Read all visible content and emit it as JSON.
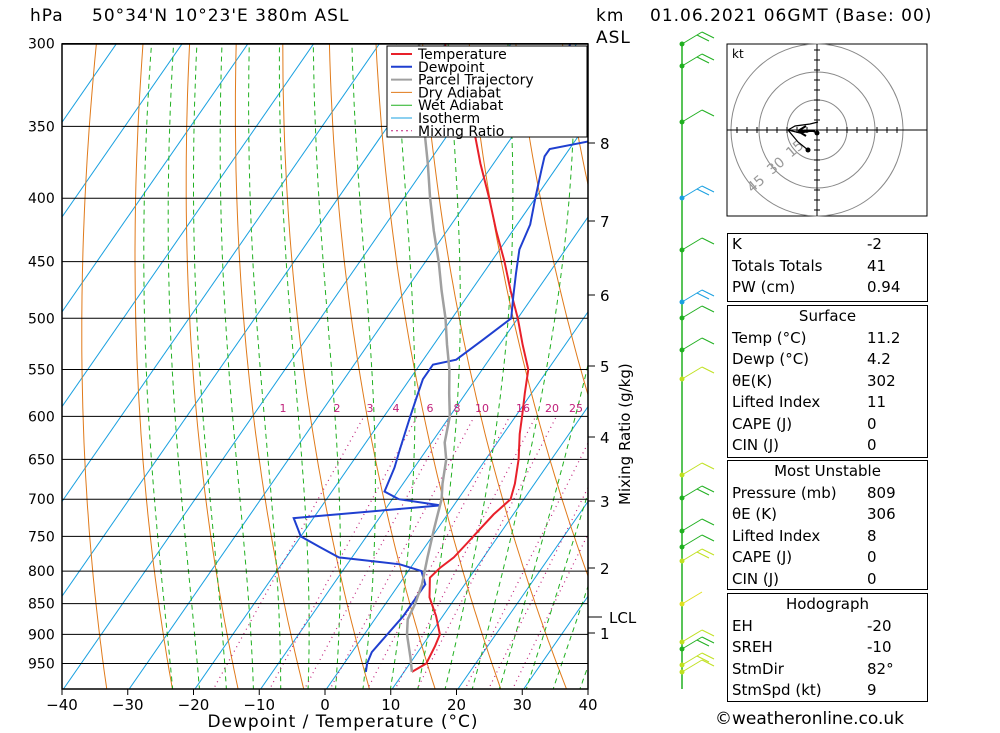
{
  "header": {
    "hpa_label": "hPa",
    "location": "50°34'N  10°23'E  380m  ASL",
    "km_label": "km",
    "asl_label": "ASL",
    "datetime": "01.06.2021  06GMT  (Base: 00)"
  },
  "credit": "©weatheronline.co.uk",
  "chart_data": {
    "type": "line",
    "xlabel": "Dewpoint / Temperature (°C)",
    "ylabel_right": "Mixing Ratio (g/kg)",
    "x_ticks": [
      "−40",
      "−30",
      "−20",
      "−10",
      "0",
      "10",
      "20",
      "30",
      "40"
    ],
    "pressure_ticks": [
      "300",
      "350",
      "400",
      "450",
      "500",
      "550",
      "600",
      "650",
      "700",
      "750",
      "800",
      "850",
      "900",
      "950"
    ],
    "km_ticks": [
      "8",
      "7",
      "6",
      "5",
      "4",
      "3",
      "2",
      "1"
    ],
    "lcl_label": "LCL",
    "mixing_ratio_labels": [
      "1",
      "2",
      "3",
      "4",
      "6",
      "8",
      "10",
      "16",
      "20",
      "25"
    ],
    "legend": [
      "Temperature",
      "Dewpoint",
      "Parcel Trajectory",
      "Dry Adiabat",
      "Wet Adiabat",
      "Isotherm",
      "Mixing Ratio"
    ],
    "colors": {
      "temperature": "#e8202a",
      "dewpoint": "#1f3fd0",
      "parcel": "#a0a0a0",
      "dry_adiabat": "#e07a1a",
      "wet_adiabat": "#20b020",
      "isotherm": "#19a0e0",
      "mixing_ratio": "#c0207a"
    },
    "series": [
      {
        "name": "Temperature",
        "points": [
          [
            11.2,
            965
          ],
          [
            12.5,
            950
          ],
          [
            12,
            920
          ],
          [
            11.5,
            900
          ],
          [
            9,
            870
          ],
          [
            6,
            840
          ],
          [
            4,
            810
          ],
          [
            4.5,
            795
          ],
          [
            5.5,
            780
          ],
          [
            6,
            760
          ],
          [
            6.5,
            740
          ],
          [
            7,
            720
          ],
          [
            8,
            700
          ],
          [
            7,
            680
          ],
          [
            5,
            650
          ],
          [
            2.5,
            620
          ],
          [
            1,
            600
          ],
          [
            -1,
            575
          ],
          [
            -3,
            550
          ],
          [
            -6.5,
            525
          ],
          [
            -10,
            500
          ],
          [
            -14,
            475
          ],
          [
            -18,
            450
          ],
          [
            -22.5,
            425
          ],
          [
            -27,
            400
          ],
          [
            -32,
            375
          ],
          [
            -37,
            350
          ],
          [
            -41,
            335
          ],
          [
            -45,
            320
          ],
          [
            -49,
            305
          ],
          [
            -50,
            300
          ]
        ]
      },
      {
        "name": "Dewpoint",
        "points": [
          [
            4.2,
            965
          ],
          [
            3.5,
            950
          ],
          [
            3,
            930
          ],
          [
            3.5,
            900
          ],
          [
            4,
            870
          ],
          [
            4,
            850
          ],
          [
            4,
            820
          ],
          [
            2,
            800
          ],
          [
            -2,
            790
          ],
          [
            -12,
            780
          ],
          [
            -16,
            765
          ],
          [
            -20,
            750
          ],
          [
            -23,
            725
          ],
          [
            -2,
            708
          ],
          [
            -9,
            700
          ],
          [
            -12,
            690
          ],
          [
            -13,
            660
          ],
          [
            -14,
            640
          ],
          [
            -15,
            620
          ],
          [
            -16,
            600
          ],
          [
            -17,
            580
          ],
          [
            -18,
            560
          ],
          [
            -18,
            545
          ],
          [
            -15,
            540
          ],
          [
            -13,
            520
          ],
          [
            -11,
            500
          ],
          [
            -13,
            480
          ],
          [
            -15,
            460
          ],
          [
            -17,
            440
          ],
          [
            -18,
            420
          ],
          [
            -20,
            400
          ],
          [
            -22,
            380
          ],
          [
            -23,
            370
          ],
          [
            -23,
            365
          ],
          [
            -15,
            357
          ],
          [
            -10,
            350
          ],
          [
            -14,
            345
          ],
          [
            -22,
            340
          ],
          [
            -28,
            330
          ],
          [
            -28,
            320
          ],
          [
            -30,
            310
          ],
          [
            -31,
            300
          ]
        ]
      },
      {
        "name": "Parcel Trajectory",
        "points": [
          [
            11.2,
            965
          ],
          [
            9.5,
            940
          ],
          [
            6.5,
            900
          ],
          [
            5,
            875
          ],
          [
            4.5,
            850
          ],
          [
            3.5,
            820
          ],
          [
            2.5,
            800
          ],
          [
            1.5,
            780
          ],
          [
            0.5,
            760
          ],
          [
            -0.5,
            740
          ],
          [
            -1.5,
            720
          ],
          [
            -2.5,
            700
          ],
          [
            -4,
            680
          ],
          [
            -6,
            650
          ],
          [
            -8,
            630
          ],
          [
            -10,
            600
          ],
          [
            -12.5,
            575
          ],
          [
            -15,
            550
          ],
          [
            -18,
            525
          ],
          [
            -21,
            500
          ],
          [
            -24.5,
            475
          ],
          [
            -28,
            450
          ],
          [
            -32,
            425
          ],
          [
            -36,
            400
          ],
          [
            -40,
            375
          ],
          [
            -44.5,
            350
          ],
          [
            -49,
            325
          ],
          [
            -54,
            300
          ]
        ]
      }
    ],
    "xlim": [
      -40,
      40
    ],
    "ylim_hpa": [
      985,
      300
    ],
    "scale": "log-pressure, skewed isotherms"
  },
  "hodograph": {
    "unit": "kt",
    "ring_labels": [
      "15",
      "30",
      "45"
    ]
  },
  "indices_top": [
    {
      "label": "K",
      "value": "-2"
    },
    {
      "label": "Totals Totals",
      "value": "41"
    },
    {
      "label": "PW (cm)",
      "value": "0.94"
    }
  ],
  "surface": {
    "title": "Surface",
    "rows": [
      {
        "label": "Temp (°C)",
        "value": "11.2"
      },
      {
        "label": "Dewp (°C)",
        "value": "4.2"
      },
      {
        "label": "θE(K)",
        "value": "302"
      },
      {
        "label": "Lifted Index",
        "value": "11"
      },
      {
        "label": "CAPE (J)",
        "value": "0"
      },
      {
        "label": "CIN (J)",
        "value": "0"
      }
    ]
  },
  "most_unstable": {
    "title": "Most Unstable",
    "rows": [
      {
        "label": "Pressure (mb)",
        "value": "809"
      },
      {
        "label": "θE (K)",
        "value": "306"
      },
      {
        "label": "Lifted Index",
        "value": "8"
      },
      {
        "label": "CAPE (J)",
        "value": "0"
      },
      {
        "label": "CIN (J)",
        "value": "0"
      }
    ]
  },
  "hodograph_table": {
    "title": "Hodograph",
    "rows": [
      {
        "label": "EH",
        "value": "-20"
      },
      {
        "label": "SREH",
        "value": "-10"
      },
      {
        "label": "StmDir",
        "value": "82°"
      },
      {
        "label": "StmSpd (kt)",
        "value": "9"
      }
    ]
  }
}
